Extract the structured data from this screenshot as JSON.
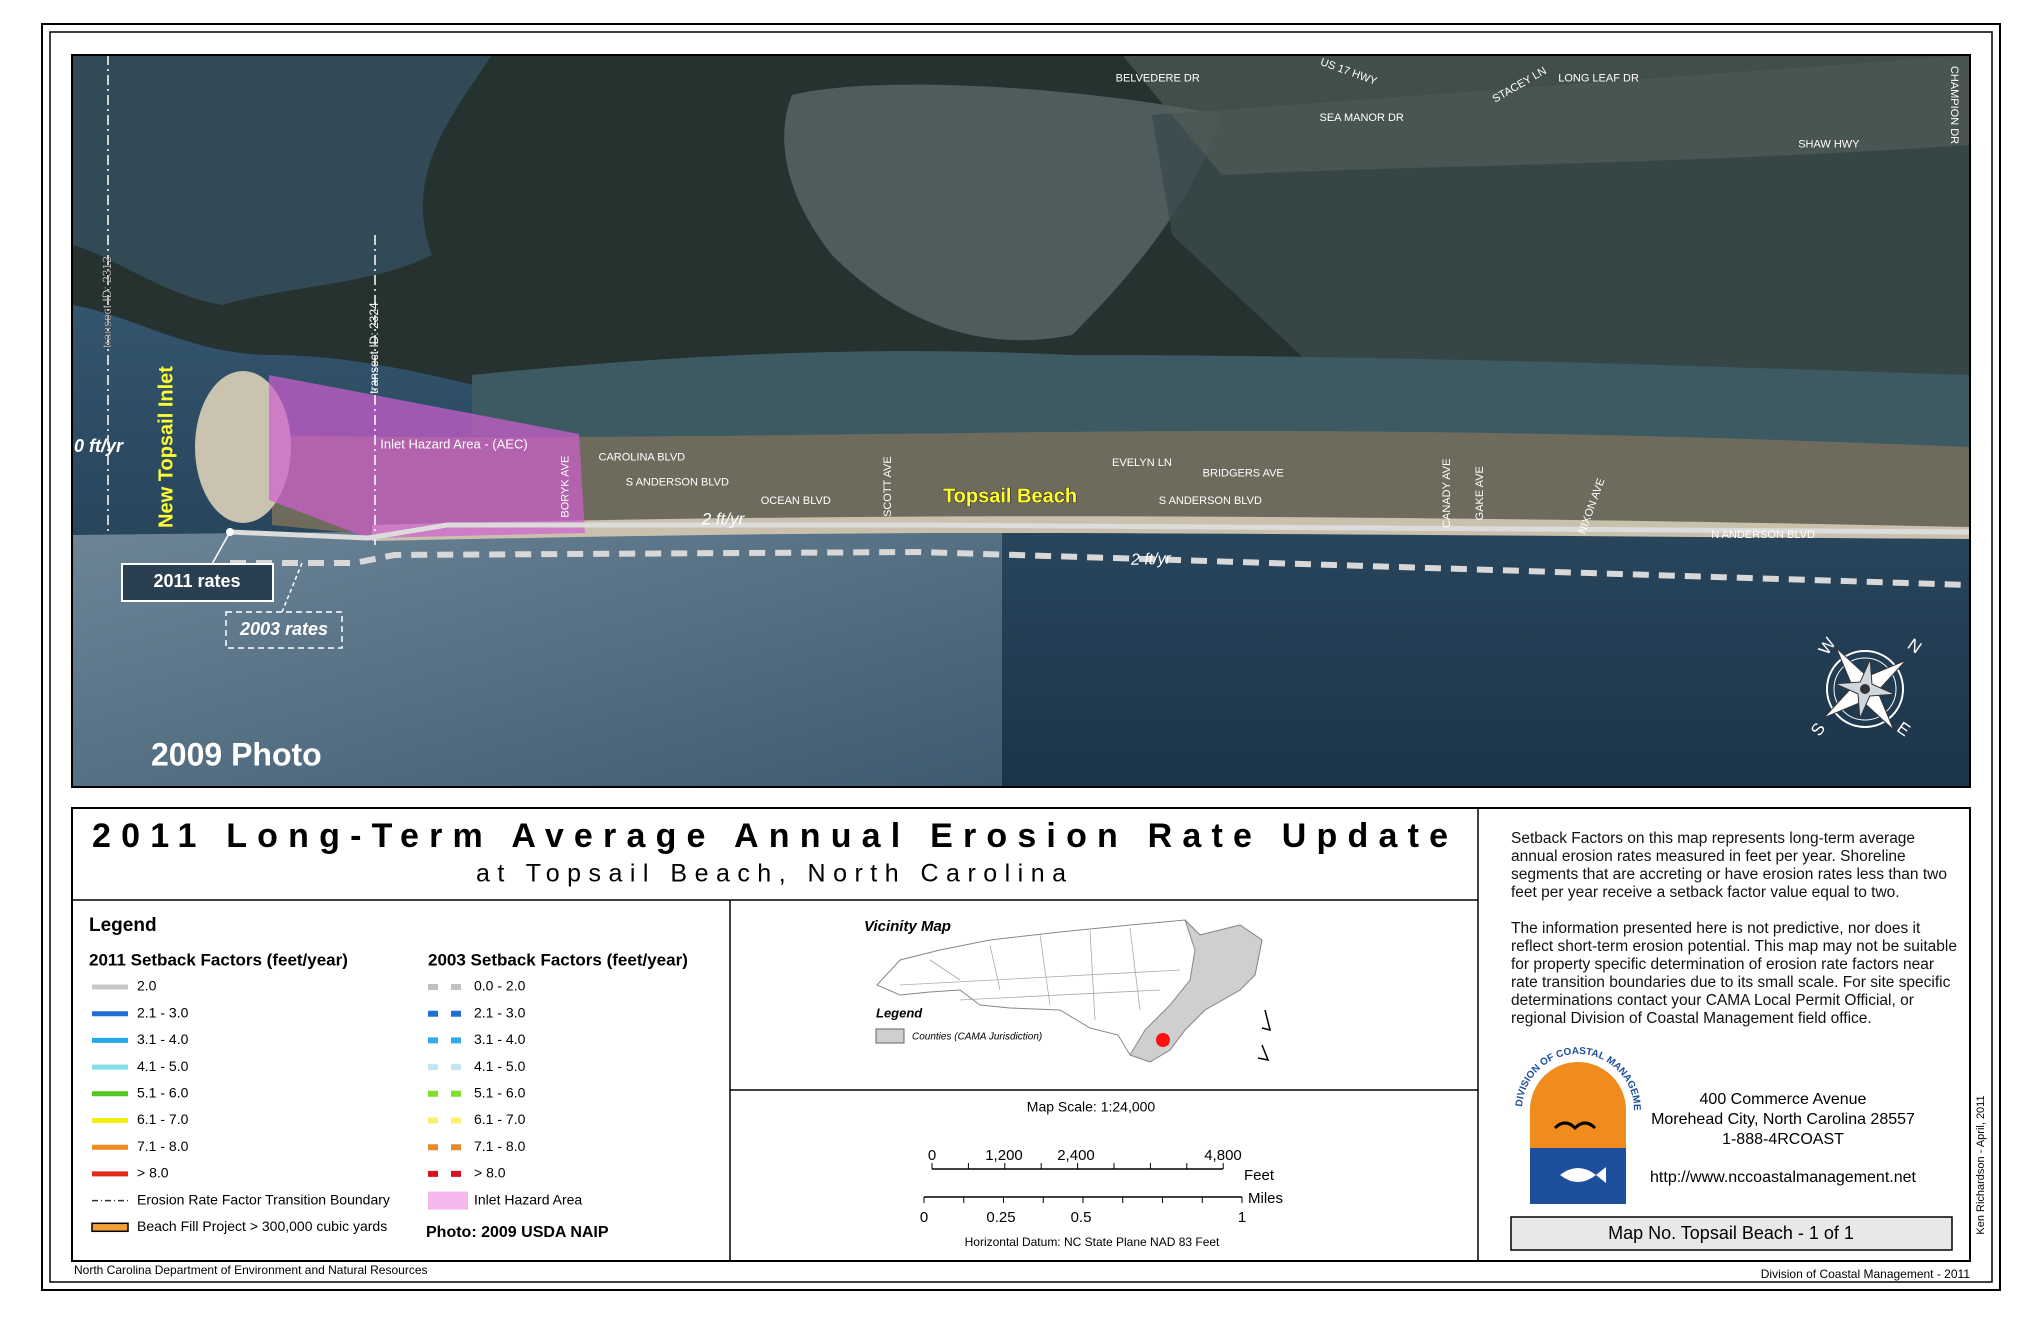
{
  "map": {
    "photo_label": "2009 Photo",
    "inlet": "New Topsail Inlet",
    "town": "Topsail Beach",
    "hazard_label": "Inlet Hazard Area - (AEC)",
    "rate_2011": "2 ft/yr",
    "rate_2003": "2 ft/yr",
    "rate_partial": "0 ft/yr",
    "callout_2011": "2011 rates",
    "callout_2003": "2003 rates",
    "transects": [
      "transect ID: 2312",
      "transect ID: 2324"
    ],
    "roads": [
      "BELVEDERE DR",
      "US 17 HWY",
      "SEA MANOR DR",
      "STACEY LN",
      "LONG LEAF DR",
      "CHAMPION DR",
      "SHAW HWY",
      "CAROLINA BLVD",
      "S ANDERSON BLVD",
      "OCEAN BLVD",
      "BORYK AVE",
      "SCOTT AVE",
      "EVELYN LN",
      "BRIDGERS AVE",
      "S ANDERSON BLVD",
      "CANADY AVE",
      "GAKE AVE",
      "NIXON AVE",
      "N ANDERSON BLVD"
    ],
    "compass": [
      "W",
      "N",
      "S",
      "E"
    ]
  },
  "title": "2011 Long-Term Average Annual Erosion Rate Update",
  "subtitle": "at Topsail Beach, North Carolina",
  "legend": {
    "title": "Legend",
    "setback_2011": {
      "title": "2011 Setback Factors (feet/year)",
      "items": [
        {
          "label": "2.0",
          "color": "#c8c8c8"
        },
        {
          "label": "2.1 - 3.0",
          "color": "#1f6fd6"
        },
        {
          "label": "3.1 - 4.0",
          "color": "#22a7e8"
        },
        {
          "label": "4.1 - 5.0",
          "color": "#7fe0e6"
        },
        {
          "label": "5.1 - 6.0",
          "color": "#55c820"
        },
        {
          "label": "6.1 - 7.0",
          "color": "#f2ee10"
        },
        {
          "label": "7.1 - 8.0",
          "color": "#f08a1a"
        },
        {
          "label": "> 8.0",
          "color": "#e02a1a"
        }
      ]
    },
    "extras": [
      "Erosion Rate Factor Transition Boundary",
      "Beach Fill Project > 300,000 cubic yards"
    ],
    "setback_2003": {
      "title": "2003 Setback Factors (feet/year)",
      "items": [
        {
          "label": "0.0 - 2.0",
          "color": "#c0c0c0"
        },
        {
          "label": "2.1 - 3.0",
          "color": "#1f6fd6"
        },
        {
          "label": "3.1 - 4.0",
          "color": "#33aaee"
        },
        {
          "label": "4.1 - 5.0",
          "color": "#bfe6f2"
        },
        {
          "label": "5.1 - 6.0",
          "color": "#7ee02a"
        },
        {
          "label": "6.1 - 7.0",
          "color": "#f8f06a"
        },
        {
          "label": "7.1 - 8.0",
          "color": "#e8892a"
        },
        {
          "label": "> 8.0",
          "color": "#d8121a"
        }
      ]
    },
    "hazard": {
      "label": "Inlet Hazard Area",
      "color": "#f4b8ee"
    },
    "photo": "Photo:  2009 USDA NAIP"
  },
  "vicinity": {
    "title": "Vicinity Map",
    "legend": "Legend",
    "counties": "Counties (CAMA Jurisdiction)"
  },
  "scale": {
    "text": "Map Scale:   1:24,000",
    "feet": [
      "0",
      "1,200",
      "2,400",
      "4,800"
    ],
    "feet_unit": "Feet",
    "miles": [
      "0",
      "0.25",
      "0.5",
      "1"
    ],
    "miles_unit": "Miles",
    "datum": "Horizontal Datum: NC State Plane NAD 83 Feet"
  },
  "notes": [
    "Setback Factors on this map represents long-term average annual erosion rates measured in feet per year.  Shoreline segments that are accreting or have erosion rates less than two feet per year receive a setback factor value equal to two.",
    "The information presented here is not predictive, nor does it  reflect short-term erosion potential.  This map may not be suitable for property specific determination of erosion rate factors near rate transition boundaries due to its small scale. For site specific determinations contact your CAMA Local Permit Official, or regional Division of Coastal Management field office."
  ],
  "logo_text": "NC DIVISION OF COASTAL MANAGEMENT",
  "address": [
    "400 Commerce Avenue",
    "Morehead City, North Carolina 28557",
    "1-888-4RCOAST"
  ],
  "url": "http://www.nccoastalmanagement.net",
  "map_number": "Map No. Topsail Beach - 1 of 1",
  "author": "Ken Richardson - April, 2011",
  "footer_left": "North Carolina Department of Environment and Natural Resources",
  "footer_right": "Division of Coastal Management - 2011"
}
